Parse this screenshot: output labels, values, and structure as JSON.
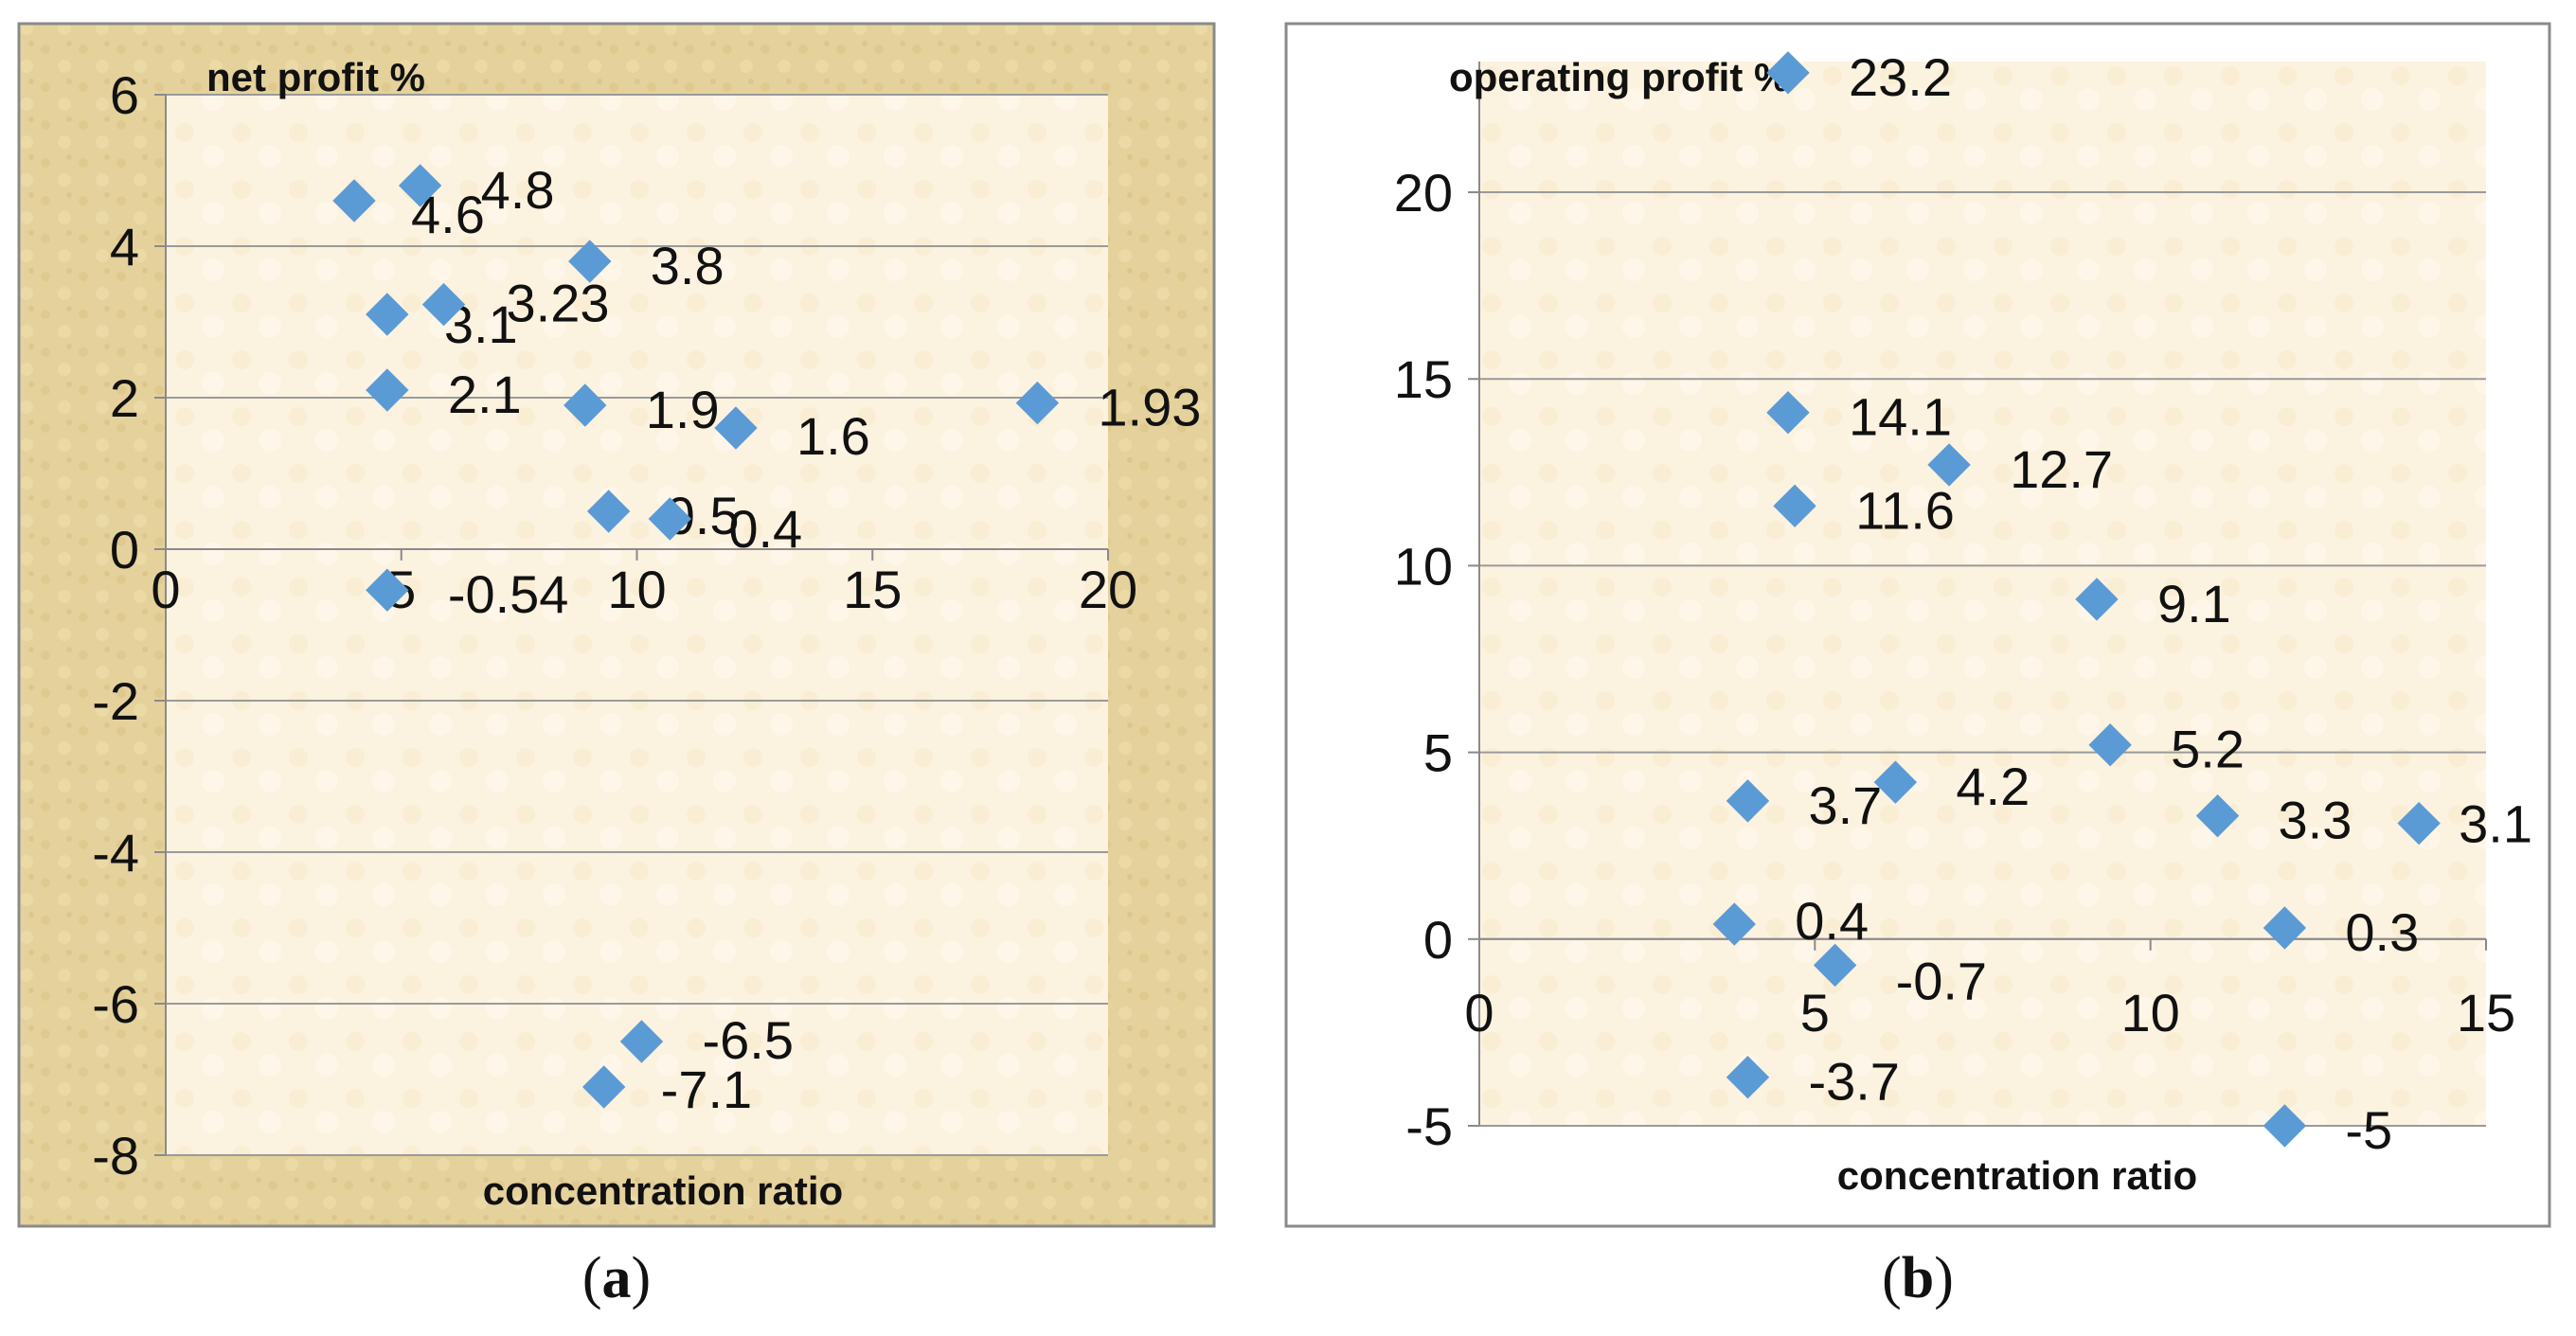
{
  "chart_data": [
    {
      "id": "a",
      "type": "scatter",
      "caption_label": "a",
      "ylabel": "net profit %",
      "xlabel": "concentration ratio",
      "xlim": [
        0,
        20
      ],
      "ylim": [
        -8,
        6
      ],
      "x_ticks": [
        0,
        5,
        10,
        15,
        20
      ],
      "y_ticks": [
        -8,
        -6,
        -4,
        -2,
        0,
        2,
        4,
        6
      ],
      "grid": "horizontal",
      "marker_color": "#5B9BD5",
      "panel_fill": "#FCF2E0",
      "frame_fill": "#E3CE9A",
      "points": [
        {
          "x": 4.0,
          "y": 4.6,
          "label": "4.6"
        },
        {
          "x": 5.4,
          "y": 4.8,
          "label": "4.8"
        },
        {
          "x": 9.0,
          "y": 3.8,
          "label": "3.8"
        },
        {
          "x": 4.7,
          "y": 3.1,
          "label": "3.1"
        },
        {
          "x": 5.9,
          "y": 3.23,
          "label": "3.23"
        },
        {
          "x": 4.7,
          "y": 2.1,
          "label": "2.1"
        },
        {
          "x": 8.9,
          "y": 1.9,
          "label": "1.9"
        },
        {
          "x": 12.1,
          "y": 1.6,
          "label": "1.6"
        },
        {
          "x": 18.5,
          "y": 1.93,
          "label": "1.93"
        },
        {
          "x": 9.4,
          "y": 0.5,
          "label": "0.5"
        },
        {
          "x": 10.7,
          "y": 0.4,
          "label": "0.4"
        },
        {
          "x": 4.7,
          "y": -0.54,
          "label": "-0.54"
        },
        {
          "x": 10.1,
          "y": -6.5,
          "label": "-6.5"
        },
        {
          "x": 9.3,
          "y": -7.1,
          "label": "-7.1"
        }
      ]
    },
    {
      "id": "b",
      "type": "scatter",
      "caption_label": "b",
      "ylabel": "operating profit %",
      "xlabel": "concentration ratio",
      "xlim": [
        0,
        15
      ],
      "ylim": [
        -5,
        23.5
      ],
      "x_ticks": [
        0,
        5,
        10,
        15
      ],
      "y_ticks": [
        -5,
        0,
        5,
        10,
        15,
        20
      ],
      "grid": "horizontal",
      "marker_color": "#5B9BD5",
      "panel_fill": "#FCF2E0",
      "frame_fill": "#FFFFFF",
      "points": [
        {
          "x": 4.6,
          "y": 23.2,
          "label": "23.2"
        },
        {
          "x": 4.6,
          "y": 14.1,
          "label": "14.1"
        },
        {
          "x": 7.0,
          "y": 12.7,
          "label": "12.7"
        },
        {
          "x": 4.7,
          "y": 11.6,
          "label": "11.6"
        },
        {
          "x": 9.2,
          "y": 9.1,
          "label": "9.1"
        },
        {
          "x": 9.4,
          "y": 5.2,
          "label": "5.2"
        },
        {
          "x": 6.2,
          "y": 4.2,
          "label": "4.2"
        },
        {
          "x": 4.0,
          "y": 3.7,
          "label": "3.7"
        },
        {
          "x": 11.0,
          "y": 3.3,
          "label": "3.3"
        },
        {
          "x": 14.0,
          "y": 3.1,
          "label": "3.1"
        },
        {
          "x": 3.8,
          "y": 0.4,
          "label": "0.4"
        },
        {
          "x": 12.0,
          "y": 0.3,
          "label": "0.3"
        },
        {
          "x": 5.3,
          "y": -0.7,
          "label": "-0.7"
        },
        {
          "x": 4.0,
          "y": -3.7,
          "label": "-3.7"
        },
        {
          "x": 12.0,
          "y": -5.0,
          "label": "-5"
        }
      ]
    }
  ]
}
